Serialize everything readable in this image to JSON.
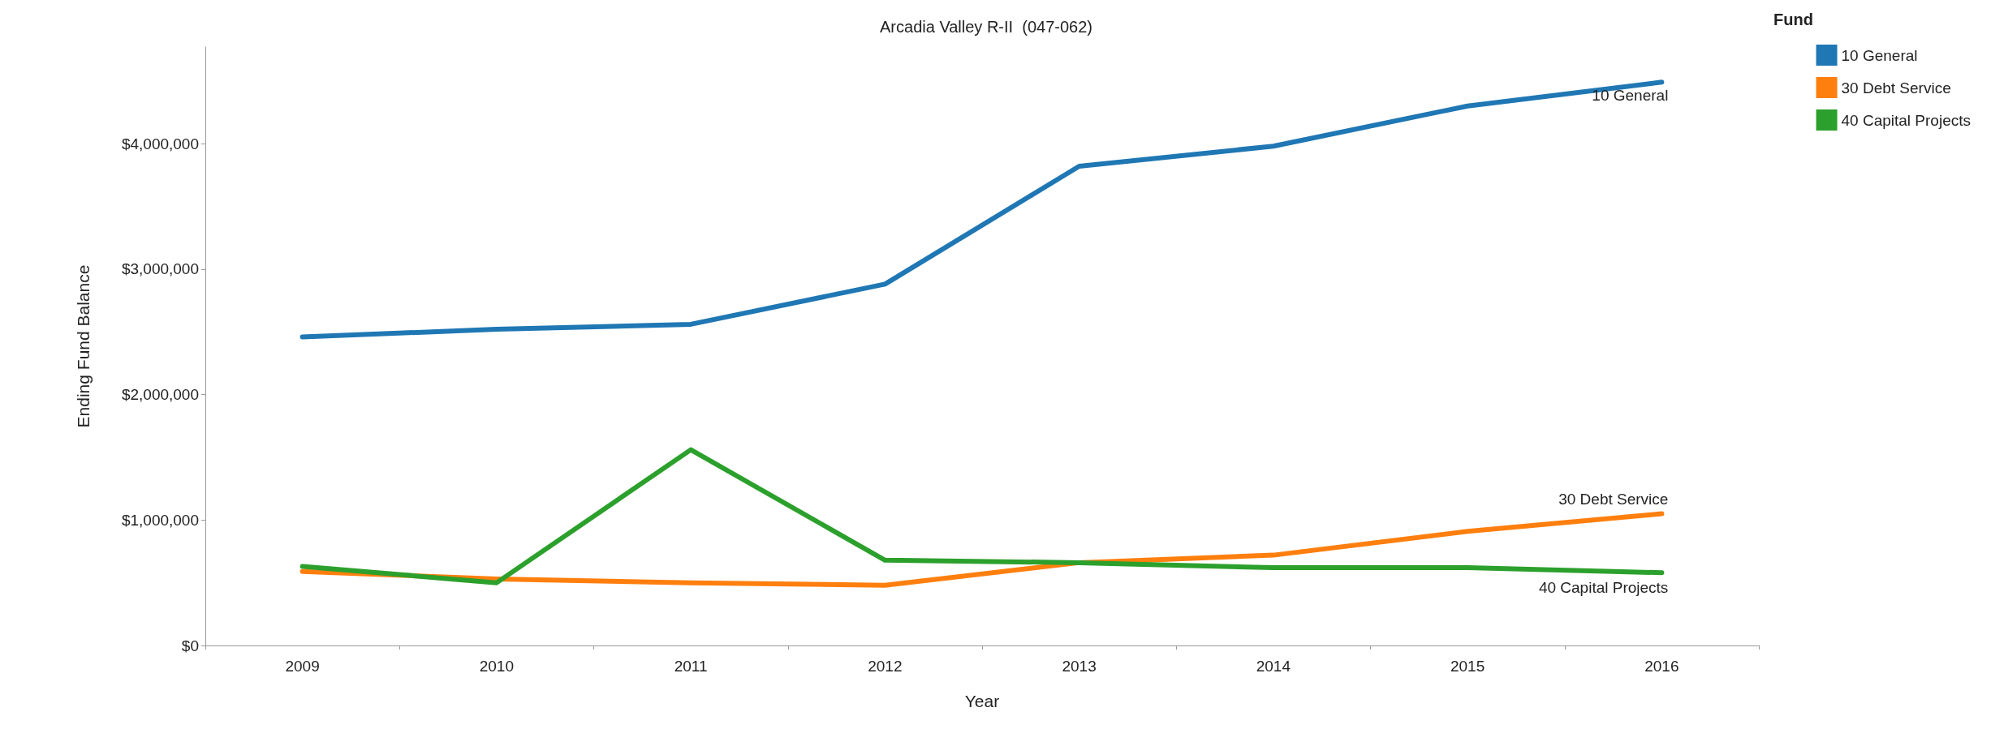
{
  "chart_data": {
    "type": "line",
    "title": "Arcadia Valley R-II  (047-062)",
    "xlabel": "Year",
    "ylabel": "Ending Fund Balance",
    "legend_title": "Fund",
    "categories": [
      "2009",
      "2010",
      "2011",
      "2012",
      "2013",
      "2014",
      "2015",
      "2016"
    ],
    "series": [
      {
        "name": "10 General",
        "color": "#1f77b4",
        "values": [
          2460000,
          2520000,
          2560000,
          2880000,
          3820000,
          3980000,
          4300000,
          4490000
        ]
      },
      {
        "name": "30 Debt Service",
        "color": "#ff7f0e",
        "values": [
          590000,
          530000,
          500000,
          480000,
          660000,
          720000,
          910000,
          1050000
        ]
      },
      {
        "name": "40 Capital Projects",
        "color": "#2ca02c",
        "values": [
          630000,
          500000,
          1560000,
          680000,
          660000,
          620000,
          620000,
          580000
        ]
      }
    ],
    "ylim": [
      0,
      4770000
    ],
    "yticks": [
      {
        "value": 0,
        "label": "$0"
      },
      {
        "value": 1000000,
        "label": "$1,000,000"
      },
      {
        "value": 2000000,
        "label": "$2,000,000"
      },
      {
        "value": 3000000,
        "label": "$3,000,000"
      },
      {
        "value": 4000000,
        "label": "$4,000,000"
      }
    ],
    "grid": false,
    "legend": "top right",
    "marker": "none",
    "line_style": "solid"
  }
}
